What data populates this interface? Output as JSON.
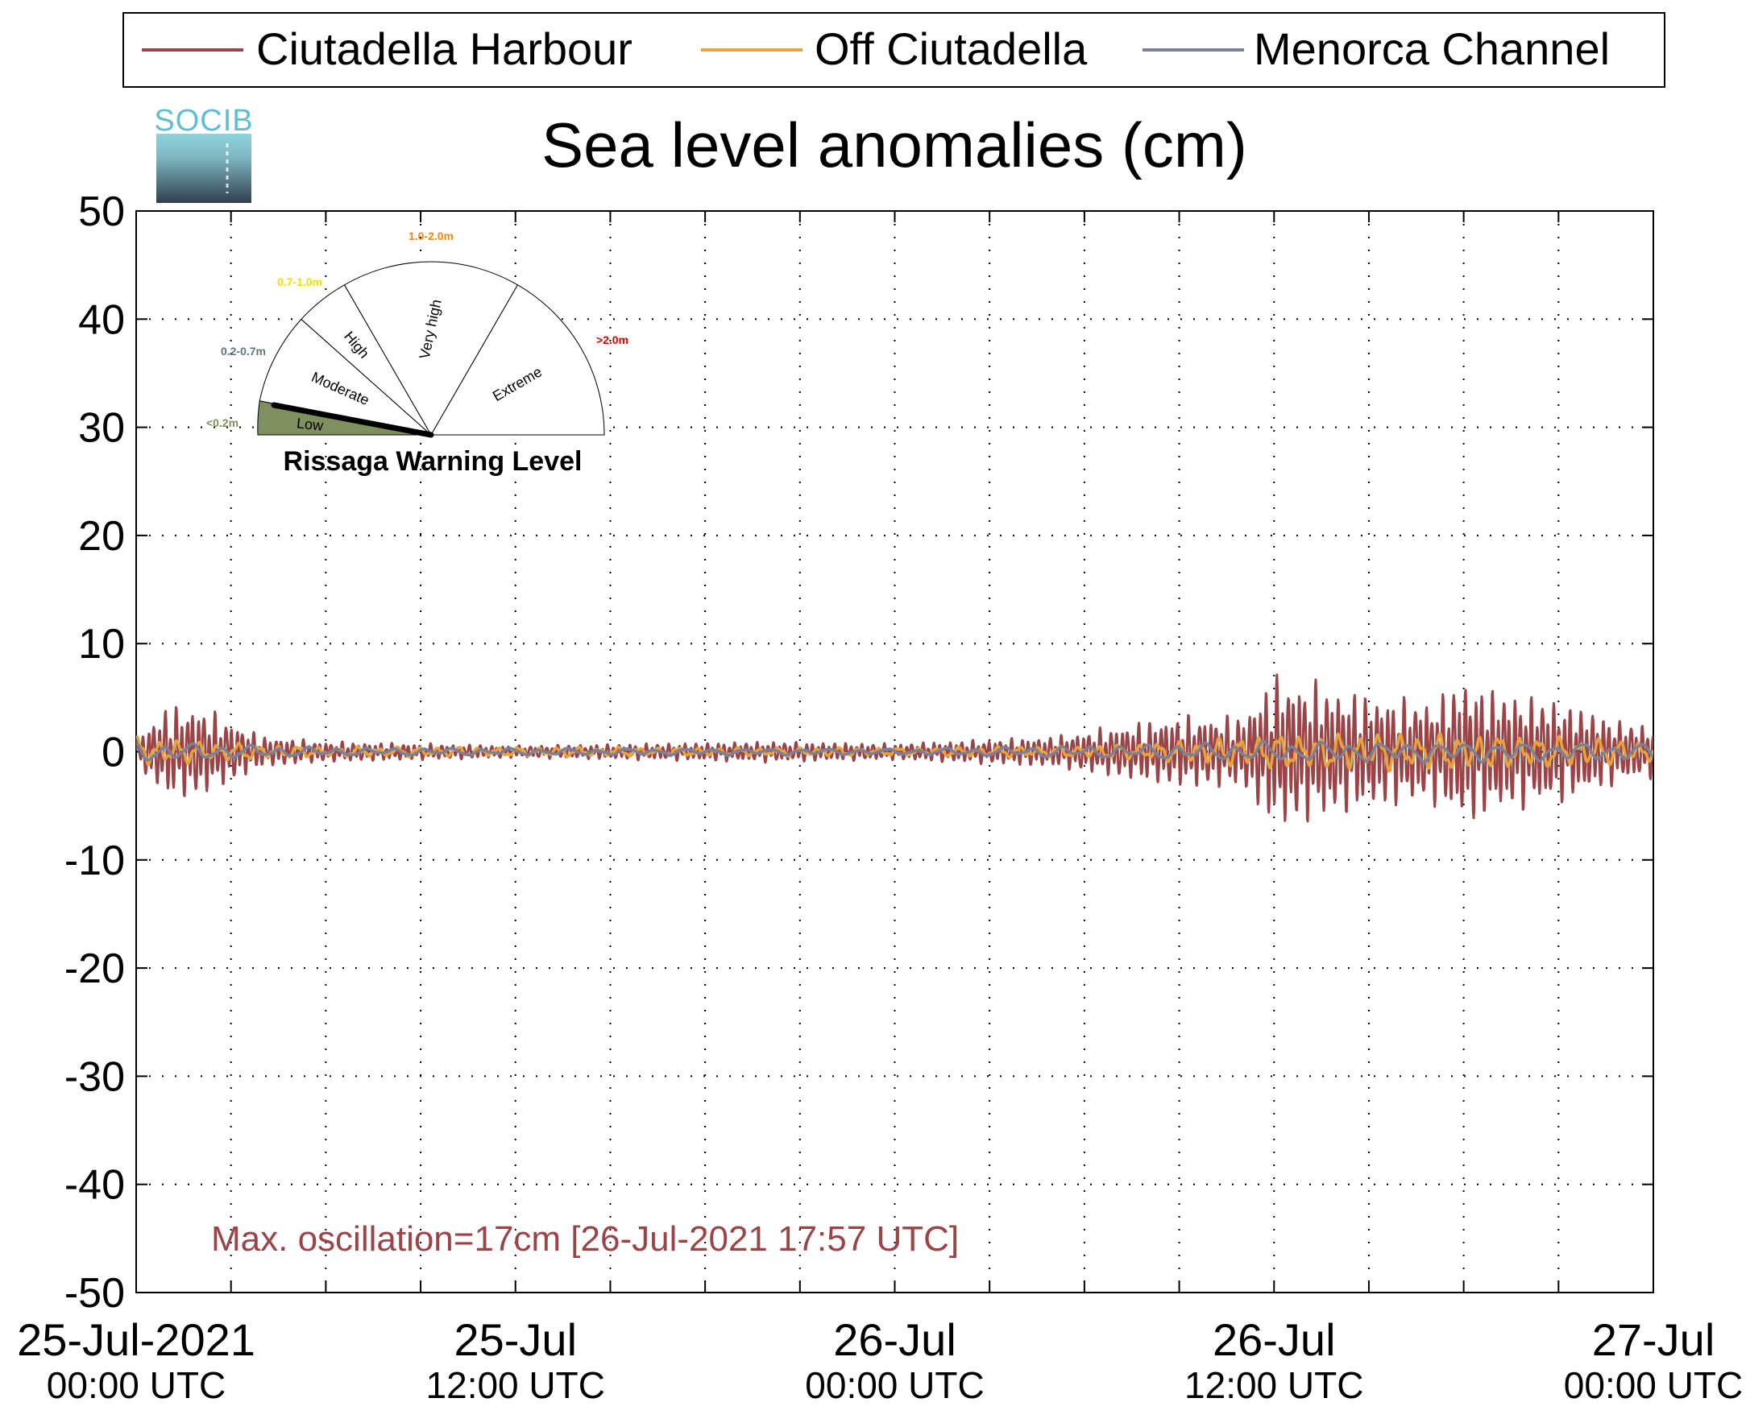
{
  "chart_data": {
    "type": "line",
    "title": "Sea level anomalies (cm)",
    "ylim": [
      -50,
      50
    ],
    "yticks": [
      "50",
      "40",
      "30",
      "20",
      "10",
      "0",
      "-10",
      "-20",
      "-30",
      "-40",
      "-50"
    ],
    "xlim": [
      "2021-07-25T00:00Z",
      "2021-07-27T00:00Z"
    ],
    "xticks": [
      {
        "date": "25-Jul-2021",
        "time": "00:00 UTC"
      },
      {
        "date": "25-Jul",
        "time": "12:00 UTC"
      },
      {
        "date": "26-Jul",
        "time": "00:00 UTC"
      },
      {
        "date": "26-Jul",
        "time": "12:00 UTC"
      },
      {
        "date": "27-Jul",
        "time": "00:00 UTC"
      }
    ],
    "grid": true,
    "legend_position": "top",
    "series": [
      {
        "name": "Ciutadella Harbour",
        "color": "#9b4448",
        "envelope_times": [
          "2021-07-25T00:00Z",
          "2021-07-25T01:00Z",
          "2021-07-25T02:00Z",
          "2021-07-25T03:00Z",
          "2021-07-25T04:00Z",
          "2021-07-25T06:00Z",
          "2021-07-25T09:00Z",
          "2021-07-25T12:00Z",
          "2021-07-25T16:00Z",
          "2021-07-25T20:00Z",
          "2021-07-26T00:00Z",
          "2021-07-26T03:00Z",
          "2021-07-26T05:00Z",
          "2021-07-26T07:00Z",
          "2021-07-26T09:00Z",
          "2021-07-26T11:00Z",
          "2021-07-26T12:00Z",
          "2021-07-26T13:00Z",
          "2021-07-26T15:00Z",
          "2021-07-26T17:00Z",
          "2021-07-26T18:00Z",
          "2021-07-26T19:00Z",
          "2021-07-26T21:00Z",
          "2021-07-26T23:00Z",
          "2021-07-27T00:00Z"
        ],
        "envelope_cm": [
          1.5,
          4.5,
          4.5,
          3,
          1.5,
          1,
          0.8,
          0.6,
          0.8,
          1,
          0.8,
          1.2,
          1.5,
          2.5,
          3.5,
          3.5,
          7.5,
          7,
          5.5,
          5,
          7,
          6,
          5,
          3,
          2.5
        ]
      },
      {
        "name": "Off Ciutadella",
        "color": "#e8a33d",
        "envelope_times": [
          "2021-07-25T00:00Z",
          "2021-07-25T02:00Z",
          "2021-07-25T06:00Z",
          "2021-07-26T00:00Z",
          "2021-07-26T06:00Z",
          "2021-07-26T09:00Z",
          "2021-07-26T12:00Z",
          "2021-07-26T15:00Z",
          "2021-07-26T18:00Z",
          "2021-07-26T21:00Z",
          "2021-07-27T00:00Z"
        ],
        "envelope_cm": [
          1.5,
          1,
          0.5,
          0.4,
          0.6,
          1,
          1.8,
          1.8,
          1.8,
          1.5,
          1
        ]
      },
      {
        "name": "Menorca Channel",
        "color": "#7a8199",
        "envelope_times": [
          "2021-07-25T00:00Z",
          "2021-07-25T06:00Z",
          "2021-07-26T00:00Z",
          "2021-07-26T06:00Z",
          "2021-07-26T12:00Z",
          "2021-07-26T18:00Z",
          "2021-07-27T00:00Z"
        ],
        "envelope_cm": [
          1,
          0.4,
          0.3,
          0.6,
          1,
          1,
          0.8
        ]
      }
    ],
    "annotation": "Max. oscillation=17cm [26-Jul-2021 17:57 UTC]",
    "annotation_color": "#9b4448"
  },
  "logo": {
    "text": "SOCIB"
  },
  "warning_gauge": {
    "title": "Rissaga Warning Level",
    "current_level": "Low",
    "levels": [
      {
        "name": "Low",
        "range": "<0.2m",
        "color": "#7f8f5f"
      },
      {
        "name": "Moderate",
        "range": "0.2-0.7m",
        "color": "#5b7780"
      },
      {
        "name": "High",
        "range": "0.7-1.0m",
        "color": "#f0e000"
      },
      {
        "name": "Very high",
        "range": "1.0-2.0m",
        "color": "#f08a10"
      },
      {
        "name": "Extreme",
        "range": ">2.0m",
        "color": "#e00000"
      }
    ]
  }
}
